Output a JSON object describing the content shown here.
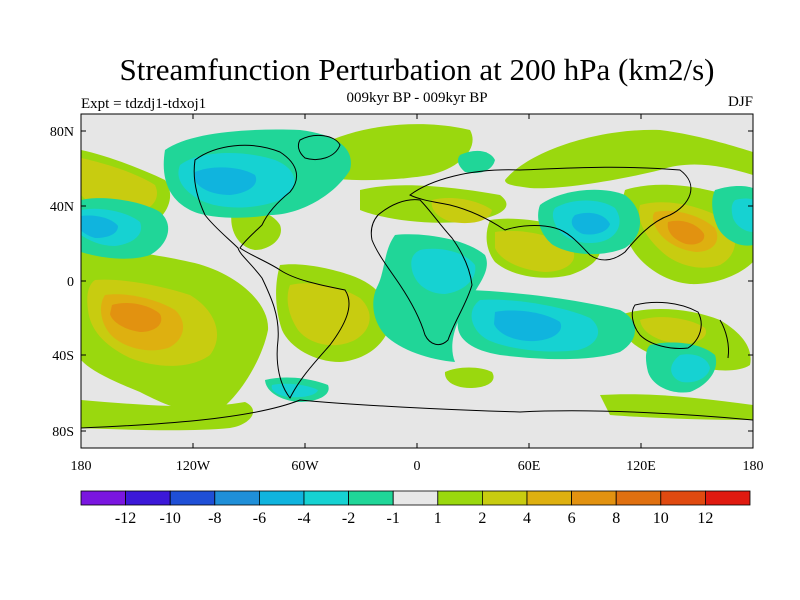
{
  "title": "Streamfunction Perturbation at 200 hPa (km2/s)",
  "subtitle_left": "Expt = tdzdj1-tdxoj1",
  "subtitle_center": "009kyr BP - 009kyr BP",
  "subtitle_right": "DJF",
  "axes": {
    "lat_labels": [
      "80N",
      "40N",
      "0",
      "40S",
      "80S"
    ],
    "lon_labels": [
      "180",
      "120W",
      "60W",
      "0",
      "60E",
      "120E",
      "180"
    ]
  },
  "colorbar": {
    "labels": [
      "-12",
      "-10",
      "-8",
      "-6",
      "-4",
      "-2",
      "-1",
      "1",
      "2",
      "4",
      "6",
      "8",
      "10",
      "12"
    ],
    "colors": [
      "#7a16e0",
      "#3c18d8",
      "#1f4fd6",
      "#1f8fd8",
      "#10b4de",
      "#16d2d2",
      "#20d698",
      "#e8e8e8",
      "#9ad80e",
      "#c8cc10",
      "#deb010",
      "#e29210",
      "#e07010",
      "#e04a10",
      "#e01a10"
    ]
  },
  "chart_data": {
    "type": "heatmap",
    "title": "Streamfunction Perturbation at 200 hPa (km2/s)",
    "x_range": [
      -180,
      180
    ],
    "y_range": [
      -90,
      90
    ],
    "levels": [
      -12,
      -10,
      -8,
      -6,
      -4,
      -2,
      -1,
      1,
      2,
      4,
      6,
      8,
      10,
      12
    ],
    "features": [
      {
        "lon": -170,
        "lat": -22,
        "value": 6,
        "kind": "positive max"
      },
      {
        "lon": 140,
        "lat": 25,
        "value": 6,
        "kind": "positive max"
      },
      {
        "lon": 78,
        "lat": 30,
        "value": -5,
        "kind": "negative min"
      },
      {
        "lon": -175,
        "lat": 30,
        "value": -5,
        "kind": "negative min"
      },
      {
        "lon": 55,
        "lat": -25,
        "value": -5,
        "kind": "negative min"
      },
      {
        "lon": -60,
        "lat": -20,
        "value": 3,
        "kind": "positive"
      },
      {
        "lon": -95,
        "lat": 55,
        "value": -4,
        "kind": "negative min"
      }
    ]
  }
}
